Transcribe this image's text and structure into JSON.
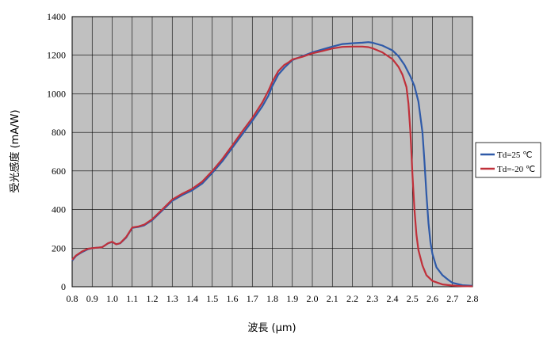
{
  "chart_data": {
    "type": "line",
    "xlabel": "波長 (μm)",
    "ylabel": "受光感度 (mA/W)",
    "xlim": [
      0.8,
      2.8
    ],
    "ylim": [
      0,
      1400
    ],
    "xticks": [
      "0.8",
      "0.9",
      "1.0",
      "1.1",
      "1.2",
      "1.3",
      "1.4",
      "1.5",
      "1.6",
      "1.7",
      "1.8",
      "1.9",
      "2.0",
      "2.1",
      "2.2",
      "2.3",
      "2.4",
      "2.5",
      "2.6",
      "2.7",
      "2.8"
    ],
    "yticks": [
      "0",
      "200",
      "400",
      "600",
      "800",
      "1000",
      "1200",
      "1400"
    ],
    "grid": true,
    "background": "#c0c0c0",
    "legend_position": "right",
    "series": [
      {
        "name": "Td=25 ℃",
        "color": "#2f5aa8",
        "points": [
          [
            0.8,
            135
          ],
          [
            0.82,
            160
          ],
          [
            0.85,
            180
          ],
          [
            0.88,
            195
          ],
          [
            0.9,
            200
          ],
          [
            0.95,
            205
          ],
          [
            0.98,
            225
          ],
          [
            1.0,
            232
          ],
          [
            1.02,
            220
          ],
          [
            1.04,
            225
          ],
          [
            1.07,
            255
          ],
          [
            1.1,
            305
          ],
          [
            1.13,
            310
          ],
          [
            1.16,
            318
          ],
          [
            1.2,
            345
          ],
          [
            1.25,
            395
          ],
          [
            1.3,
            445
          ],
          [
            1.35,
            475
          ],
          [
            1.4,
            500
          ],
          [
            1.45,
            535
          ],
          [
            1.5,
            590
          ],
          [
            1.55,
            650
          ],
          [
            1.6,
            720
          ],
          [
            1.65,
            790
          ],
          [
            1.7,
            860
          ],
          [
            1.75,
            935
          ],
          [
            1.78,
            990
          ],
          [
            1.8,
            1040
          ],
          [
            1.83,
            1100
          ],
          [
            1.86,
            1135
          ],
          [
            1.88,
            1155
          ],
          [
            1.9,
            1175
          ],
          [
            1.95,
            1195
          ],
          [
            2.0,
            1215
          ],
          [
            2.05,
            1230
          ],
          [
            2.1,
            1245
          ],
          [
            2.15,
            1258
          ],
          [
            2.2,
            1262
          ],
          [
            2.25,
            1265
          ],
          [
            2.28,
            1268
          ],
          [
            2.3,
            1265
          ],
          [
            2.35,
            1250
          ],
          [
            2.4,
            1225
          ],
          [
            2.43,
            1195
          ],
          [
            2.46,
            1150
          ],
          [
            2.49,
            1090
          ],
          [
            2.51,
            1040
          ],
          [
            2.53,
            960
          ],
          [
            2.55,
            800
          ],
          [
            2.56,
            650
          ],
          [
            2.57,
            480
          ],
          [
            2.58,
            330
          ],
          [
            2.59,
            230
          ],
          [
            2.6,
            170
          ],
          [
            2.62,
            100
          ],
          [
            2.65,
            60
          ],
          [
            2.68,
            35
          ],
          [
            2.7,
            20
          ],
          [
            2.75,
            8
          ],
          [
            2.8,
            5
          ]
        ]
      },
      {
        "name": "Td=-20 ℃",
        "color": "#c0303a",
        "points": [
          [
            0.8,
            140
          ],
          [
            0.82,
            162
          ],
          [
            0.85,
            183
          ],
          [
            0.88,
            197
          ],
          [
            0.9,
            200
          ],
          [
            0.95,
            205
          ],
          [
            0.98,
            226
          ],
          [
            1.0,
            233
          ],
          [
            1.02,
            220
          ],
          [
            1.04,
            226
          ],
          [
            1.07,
            258
          ],
          [
            1.1,
            307
          ],
          [
            1.13,
            312
          ],
          [
            1.16,
            322
          ],
          [
            1.2,
            350
          ],
          [
            1.25,
            400
          ],
          [
            1.3,
            452
          ],
          [
            1.35,
            482
          ],
          [
            1.4,
            508
          ],
          [
            1.45,
            545
          ],
          [
            1.5,
            600
          ],
          [
            1.55,
            662
          ],
          [
            1.6,
            732
          ],
          [
            1.65,
            805
          ],
          [
            1.7,
            875
          ],
          [
            1.75,
            955
          ],
          [
            1.78,
            1015
          ],
          [
            1.8,
            1062
          ],
          [
            1.83,
            1118
          ],
          [
            1.86,
            1150
          ],
          [
            1.88,
            1162
          ],
          [
            1.9,
            1178
          ],
          [
            1.95,
            1192
          ],
          [
            2.0,
            1210
          ],
          [
            2.05,
            1222
          ],
          [
            2.1,
            1235
          ],
          [
            2.15,
            1243
          ],
          [
            2.2,
            1245
          ],
          [
            2.25,
            1245
          ],
          [
            2.28,
            1242
          ],
          [
            2.3,
            1236
          ],
          [
            2.35,
            1215
          ],
          [
            2.4,
            1180
          ],
          [
            2.43,
            1140
          ],
          [
            2.45,
            1100
          ],
          [
            2.47,
            1035
          ],
          [
            2.48,
            950
          ],
          [
            2.49,
            800
          ],
          [
            2.5,
            580
          ],
          [
            2.51,
            400
          ],
          [
            2.52,
            270
          ],
          [
            2.53,
            190
          ],
          [
            2.55,
            110
          ],
          [
            2.57,
            60
          ],
          [
            2.6,
            30
          ],
          [
            2.65,
            12
          ],
          [
            2.7,
            6
          ],
          [
            2.75,
            3
          ],
          [
            2.8,
            2
          ]
        ]
      }
    ]
  }
}
